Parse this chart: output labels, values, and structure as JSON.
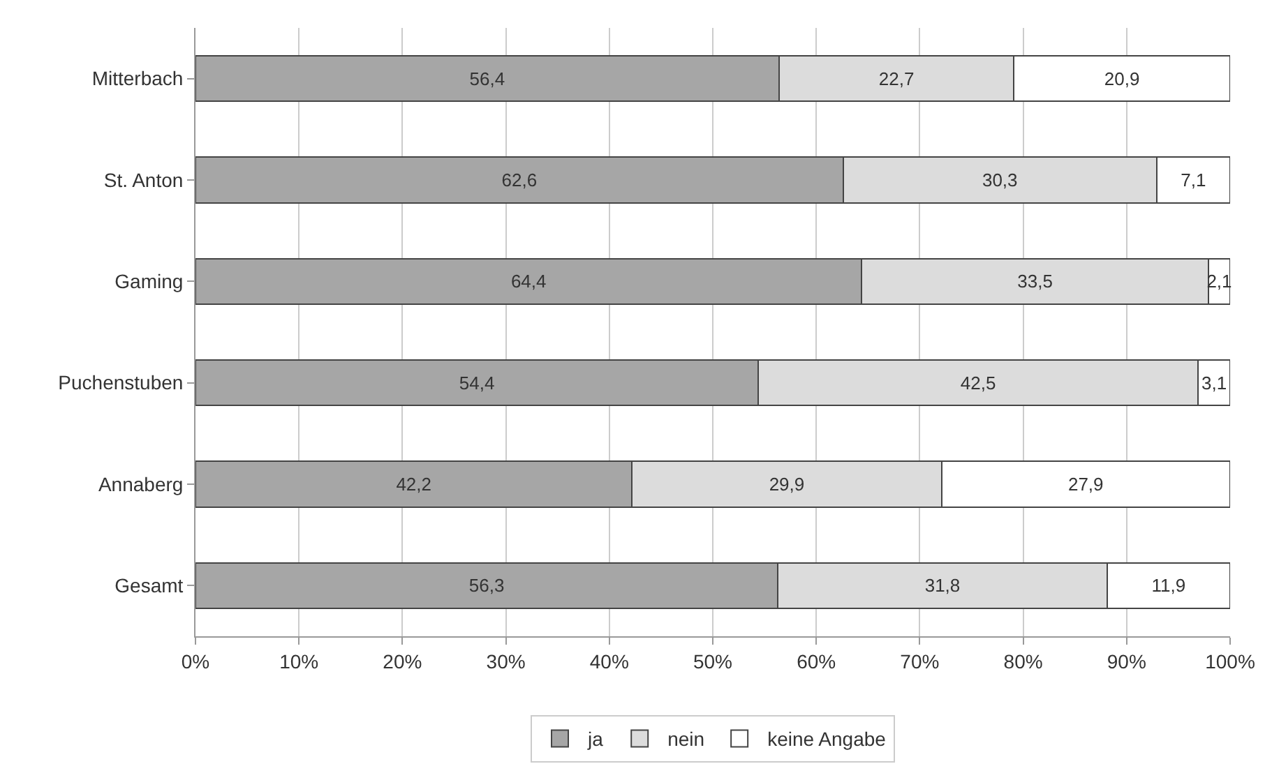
{
  "chart_data": {
    "type": "bar",
    "orientation": "horizontal",
    "stacked": true,
    "categories": [
      "Mitterbach",
      "St. Anton",
      "Gaming",
      "Puchenstuben",
      "Annaberg",
      "Gesamt"
    ],
    "series": [
      {
        "name": "ja",
        "color": "#a6a6a6",
        "values": [
          56.4,
          62.6,
          64.4,
          54.4,
          42.2,
          56.3
        ],
        "value_labels": [
          "56,4",
          "62,6",
          "64,4",
          "54,4",
          "42,2",
          "56,3"
        ]
      },
      {
        "name": "nein",
        "color": "#dcdcdc",
        "values": [
          22.7,
          30.3,
          33.5,
          42.5,
          29.9,
          31.8
        ],
        "value_labels": [
          "22,7",
          "30,3",
          "33,5",
          "42,5",
          "29,9",
          "31,8"
        ]
      },
      {
        "name": "keine Angabe",
        "color": "#ffffff",
        "values": [
          20.9,
          7.1,
          2.1,
          3.1,
          27.9,
          11.9
        ],
        "value_labels": [
          "20,9",
          "7,1",
          "2,1",
          "3,1",
          "27,9",
          "11,9"
        ]
      }
    ],
    "xlim": [
      0,
      100
    ],
    "xticks": [
      {
        "value": 0,
        "label": "0%"
      },
      {
        "value": 10,
        "label": "10%"
      },
      {
        "value": 20,
        "label": "20%"
      },
      {
        "value": 30,
        "label": "30%"
      },
      {
        "value": 40,
        "label": "40%"
      },
      {
        "value": 50,
        "label": "50%"
      },
      {
        "value": 60,
        "label": "60%"
      },
      {
        "value": 70,
        "label": "70%"
      },
      {
        "value": 80,
        "label": "80%"
      },
      {
        "value": 90,
        "label": "90%"
      },
      {
        "value": 100,
        "label": "100%"
      }
    ],
    "grid": "x",
    "legend": "bottom"
  }
}
